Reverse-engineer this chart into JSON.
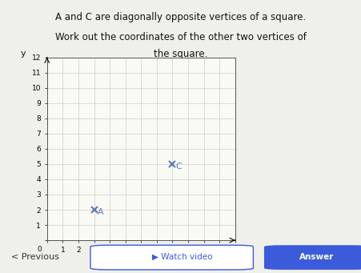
{
  "title_line1": "A and C are diagonally opposite vertices of a square.",
  "title_line2": "Work out the coordinates of the other two vertices of",
  "title_line3": "the square.",
  "point_A": [
    3,
    2
  ],
  "point_C": [
    8,
    5
  ],
  "point_A_label": "A",
  "point_C_label": "C",
  "xmin": 0,
  "xmax": 12,
  "ymin": 0,
  "ymax": 12,
  "grid_color": "#cccccc",
  "point_color": "#5a7ab5",
  "marker": "x",
  "background_color": "#f5f5f0",
  "text_color": "#1a1a2e",
  "label_fontsize": 9,
  "axis_label_fontsize": 8,
  "header_bg": "#e8e8e8",
  "score_color_green": "#4caf50",
  "score_color_red": "#f44336",
  "watch_video_color": "#3b5bdb",
  "answer_color": "#3b5bdb"
}
